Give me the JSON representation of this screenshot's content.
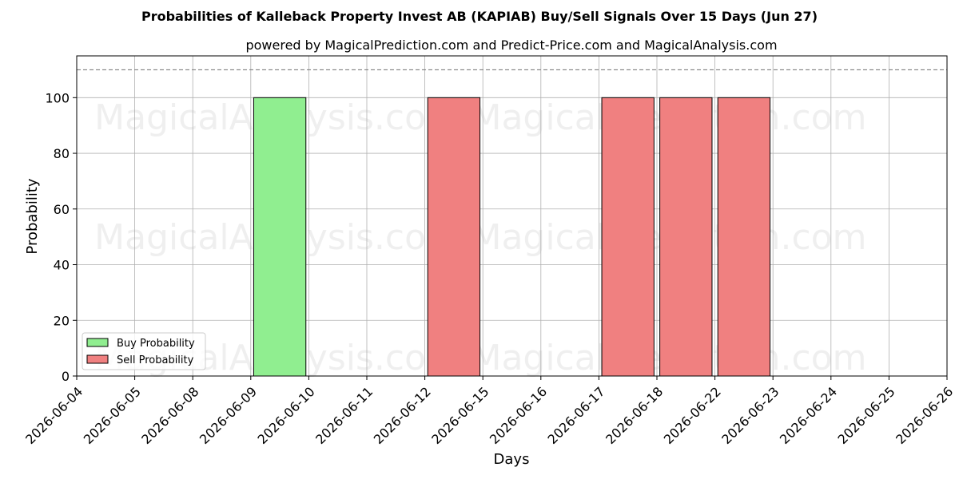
{
  "chart_data": {
    "type": "bar",
    "title": "Probabilities of Kalleback Property Invest AB (KAPIAB) Buy/Sell Signals Over 15 Days (Jun 27)",
    "subtitle": "powered by MagicalPrediction.com and Predict-Price.com and MagicalAnalysis.com",
    "xlabel": "Days",
    "ylabel": "Probability",
    "ylim": [
      0,
      115
    ],
    "yticks": [
      0,
      20,
      40,
      60,
      80,
      100
    ],
    "reference_line": 110,
    "grid": true,
    "legend_placement": "bottom-left",
    "categories": [
      "2026-06-04",
      "2026-06-05",
      "2026-06-08",
      "2026-06-09",
      "2026-06-10",
      "2026-06-11",
      "2026-06-12",
      "2026-06-15",
      "2026-06-16",
      "2026-06-17",
      "2026-06-18",
      "2026-06-22",
      "2026-06-23",
      "2026-06-24",
      "2026-06-25",
      "2026-06-26"
    ],
    "series": [
      {
        "name": "Buy Probability",
        "color": "#90ee90",
        "values": [
          0,
          0,
          0,
          100,
          0,
          0,
          0,
          0,
          0,
          0,
          0,
          0,
          0,
          0,
          0,
          0
        ]
      },
      {
        "name": "Sell Probability",
        "color": "#f08080",
        "values": [
          0,
          0,
          0,
          0,
          0,
          0,
          100,
          0,
          0,
          100,
          100,
          100,
          0,
          0,
          0,
          0
        ]
      }
    ],
    "watermarks": [
      "MagicalAnalysis.com",
      "MagicalPrediction.com"
    ]
  }
}
